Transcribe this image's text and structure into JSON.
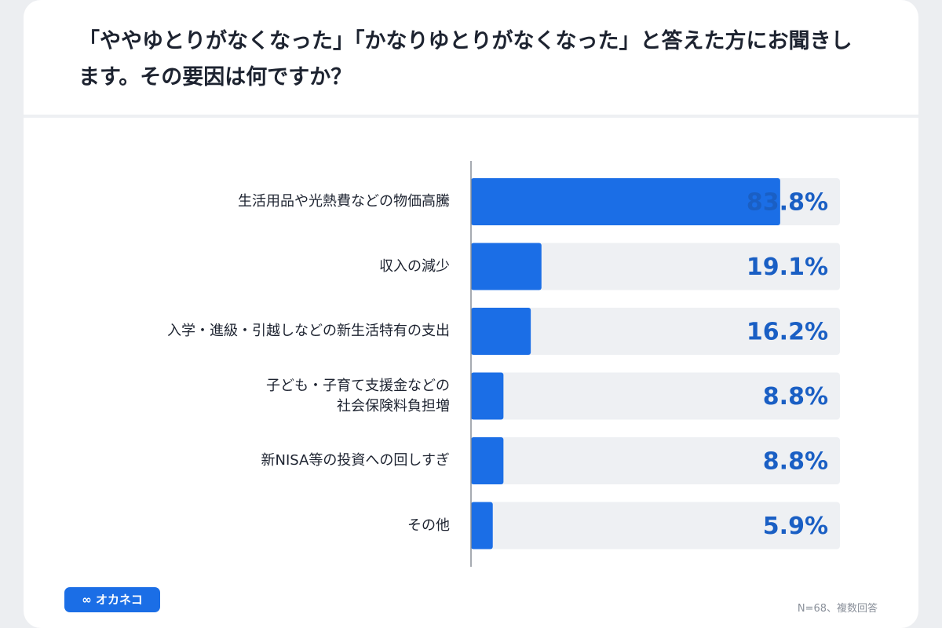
{
  "chart_data": {
    "type": "bar",
    "orientation": "horizontal",
    "title": "「ややゆとりがなくなった」「かなりゆとりがなくなった」と答えた方にお聞きします。その要因は何ですか？",
    "categories": [
      "生活用品や光熱費などの物価高騰",
      "収入の減少",
      "入学・進級・引越しなどの新生活特有の支出",
      "子ども・子育て支援金などの\n社会保険料負担増",
      "新NISA等の投資への回しすぎ",
      "その他"
    ],
    "values": [
      83.8,
      19.1,
      16.2,
      8.8,
      8.8,
      5.9
    ],
    "value_labels": [
      "83.8%",
      "19.1%",
      "16.2%",
      "8.8%",
      "8.8%",
      "5.9%"
    ],
    "color": "#1b6ee6",
    "xlim": [
      0,
      100
    ],
    "note": "N=68、複数回答",
    "logo": "∞ オカネコ"
  }
}
